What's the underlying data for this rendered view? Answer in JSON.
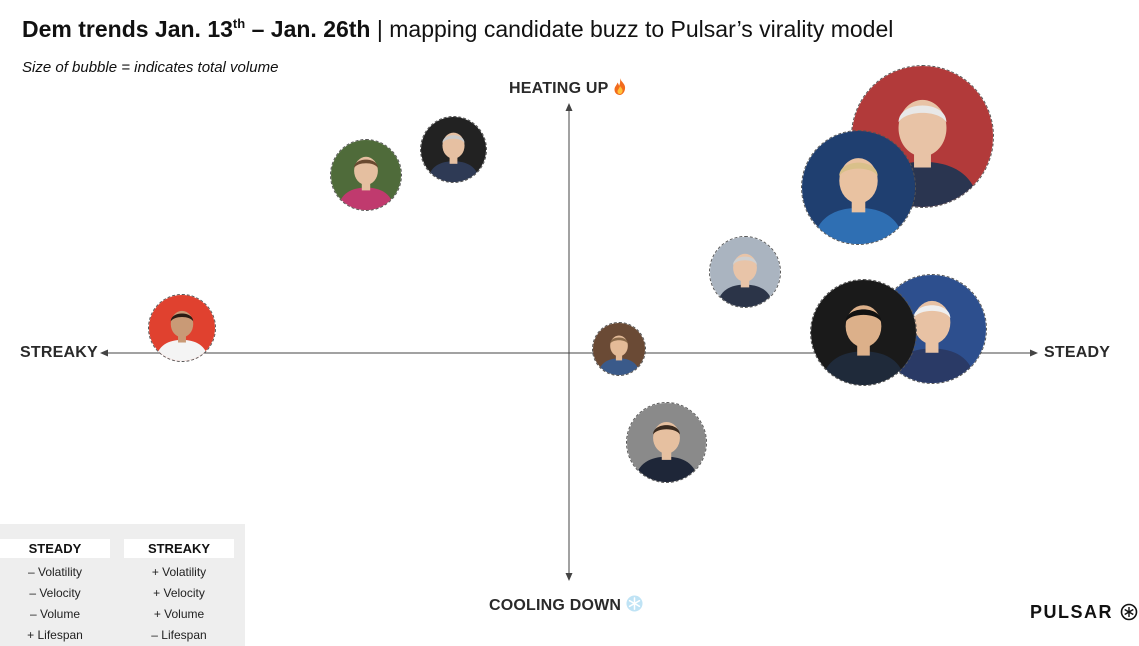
{
  "title": {
    "bold_main": "Dem trends Jan. 13",
    "bold_sup": "th",
    "bold_tail": " – Jan. 26th",
    "rest": " | mapping candidate buzz to Pulsar’s virality model"
  },
  "subtitle": "Size of bubble = indicates total volume",
  "axes": {
    "top": "HEATING UP",
    "top_icon": "fire-icon",
    "bottom": "COOLING DOWN",
    "bottom_icon": "snowflake-icon",
    "left": "STREAKY",
    "right": "STEADY"
  },
  "bubbles": [
    {
      "id": "bernie",
      "icon": "candidate-portrait",
      "bg": "#b23a3a",
      "skin": "#e8c3a6",
      "hair": "#e8e8e8",
      "suit": "#2a3550"
    },
    {
      "id": "warren",
      "icon": "candidate-portrait",
      "bg": "#1f3f70",
      "skin": "#e9c2a1",
      "hair": "#d9c08a",
      "suit": "#2f6fb3"
    },
    {
      "id": "klobuchar",
      "icon": "candidate-portrait",
      "bg": "#4f6b3a",
      "skin": "#e5bfa0",
      "hair": "#6a4a30",
      "suit": "#c03a6e"
    },
    {
      "id": "steyer",
      "icon": "candidate-portrait",
      "bg": "#222222",
      "skin": "#e6c0a2",
      "hair": "#c9c9c9",
      "suit": "#2e3a55"
    },
    {
      "id": "bloomberg",
      "icon": "candidate-portrait",
      "bg": "#aab4c0",
      "skin": "#e8c4a8",
      "hair": "#d0d0d0",
      "suit": "#2b3448"
    },
    {
      "id": "gabbard",
      "icon": "candidate-portrait",
      "bg": "#e0412f",
      "skin": "#c99a76",
      "hair": "#2a1c14",
      "suit": "#f4f4f4"
    },
    {
      "id": "delaney",
      "icon": "candidate-portrait",
      "bg": "#6a4a35",
      "skin": "#e4bb98",
      "hair": "#8a6a4a",
      "suit": "#3a5a8a"
    },
    {
      "id": "buttigieg",
      "icon": "candidate-portrait",
      "bg": "#8a8a8a",
      "skin": "#e6c0a0",
      "hair": "#3a2a1e",
      "suit": "#1e2638"
    },
    {
      "id": "yang",
      "icon": "candidate-portrait",
      "bg": "#1a1a1a",
      "skin": "#dcb08a",
      "hair": "#111111",
      "suit": "#1f2a3a"
    },
    {
      "id": "biden",
      "icon": "candidate-portrait",
      "bg": "#2d4f8e",
      "skin": "#e8c2a4",
      "hair": "#efefef",
      "suit": "#2a3a66"
    }
  ],
  "legend": {
    "steady": {
      "title": "STEADY",
      "items": [
        "– Volatility",
        "– Velocity",
        "– Volume",
        "+ Lifespan"
      ]
    },
    "streaky": {
      "title": "STREAKY",
      "items": [
        "+ Volatility",
        "+ Velocity",
        "+ Volume",
        "– Lifespan"
      ]
    }
  },
  "logo": {
    "text": "PULSAR",
    "icon": "pulsar-logo-icon"
  }
}
